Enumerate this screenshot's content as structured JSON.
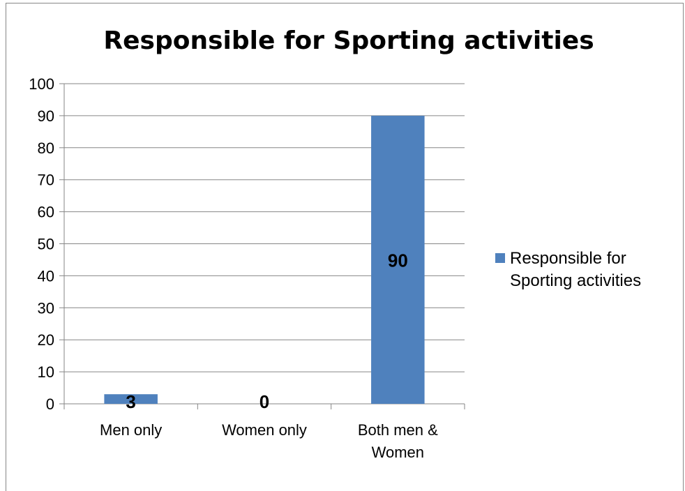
{
  "chart_data": {
    "type": "bar",
    "title": "Responsible for Sporting activities",
    "categories": [
      "Men only",
      "Women only",
      "Both men & Women"
    ],
    "category_lines": [
      [
        "Men only"
      ],
      [
        "Women only"
      ],
      [
        "Both men &",
        "Women"
      ]
    ],
    "series": [
      {
        "name": "Responsible for Sporting activities",
        "values": [
          3,
          0,
          90
        ],
        "color": "#4F81BD"
      }
    ],
    "data_labels": [
      "3",
      "0",
      "90"
    ],
    "legend_lines": [
      "Responsible for",
      "Sporting activities"
    ],
    "ylim": [
      0,
      100
    ],
    "yticks": [
      0,
      10,
      20,
      30,
      40,
      50,
      60,
      70,
      80,
      90,
      100
    ],
    "grid": true,
    "legend_position": "right"
  }
}
